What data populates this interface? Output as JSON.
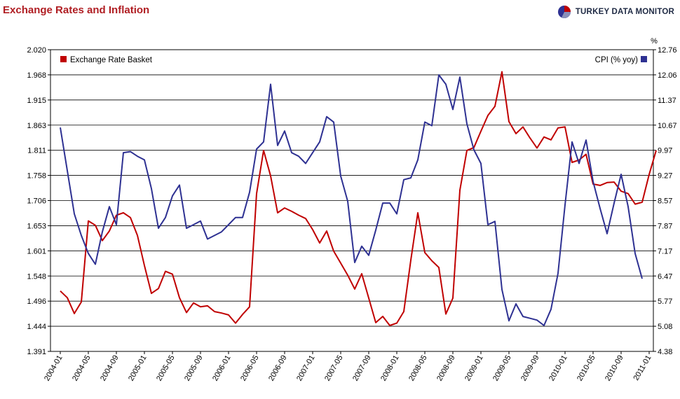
{
  "header": {
    "title": "Exchange Rates and Inflation",
    "brand": "TURKEY DATA MONITOR"
  },
  "colors": {
    "series1": "#c00000",
    "series2": "#2e3192",
    "title": "#b01e23"
  },
  "chart_data": {
    "type": "line",
    "title": "Exchange Rates and Inflation",
    "x_tick_labels": [
      "2004-01",
      "2004-05",
      "2004-09",
      "2005-01",
      "2005-05",
      "2005-09",
      "2006-01",
      "2006-05",
      "2006-09",
      "2007-01",
      "2007-05",
      "2007-09",
      "2008-01",
      "2008-05",
      "2008-09",
      "2009-01",
      "2009-05",
      "2009-09",
      "2010-01",
      "2010-05",
      "2010-09",
      "2011-01"
    ],
    "months_start": "2004-01",
    "left_axis": {
      "min": 1.391,
      "max": 2.02,
      "ticks": [
        "1.391",
        "1.444",
        "1.496",
        "1.548",
        "1.601",
        "1.653",
        "1.706",
        "1.758",
        "1.811",
        "1.863",
        "1.915",
        "1.968",
        "2.020"
      ]
    },
    "right_axis": {
      "unit": "%",
      "min": 4.38,
      "max": 12.76,
      "ticks": [
        "4.38",
        "5.08",
        "5.77",
        "6.47",
        "7.17",
        "7.87",
        "8.57",
        "9.27",
        "9.97",
        "10.67",
        "11.37",
        "12.06",
        "12.76"
      ]
    },
    "legend": {
      "left": "Exchange Rate Basket",
      "right": "CPI (% yoy)"
    },
    "series": [
      {
        "name": "Exchange Rate Basket",
        "axis": "left",
        "values": [
          1.517,
          1.503,
          1.47,
          1.494,
          1.663,
          1.654,
          1.622,
          1.642,
          1.675,
          1.68,
          1.67,
          1.633,
          1.57,
          1.512,
          1.522,
          1.558,
          1.552,
          1.503,
          1.472,
          1.492,
          1.484,
          1.486,
          1.474,
          1.471,
          1.467,
          1.45,
          1.468,
          1.484,
          1.72,
          1.81,
          1.757,
          1.68,
          1.69,
          1.683,
          1.675,
          1.668,
          1.645,
          1.617,
          1.642,
          1.6,
          1.575,
          1.55,
          1.521,
          1.553,
          1.502,
          1.451,
          1.464,
          1.445,
          1.45,
          1.474,
          1.581,
          1.68,
          1.597,
          1.58,
          1.566,
          1.469,
          1.502,
          1.727,
          1.81,
          1.816,
          1.85,
          1.883,
          1.902,
          1.974,
          1.87,
          1.845,
          1.859,
          1.836,
          1.815,
          1.838,
          1.832,
          1.857,
          1.859,
          1.785,
          1.79,
          1.802,
          1.74,
          1.737,
          1.743,
          1.744,
          1.725,
          1.72,
          1.698,
          1.702,
          1.76,
          1.81
        ]
      },
      {
        "name": "CPI (% yoy)",
        "axis": "right",
        "values": [
          10.6,
          9.4,
          8.2,
          7.6,
          7.1,
          6.8,
          7.7,
          8.4,
          7.9,
          9.9,
          9.93,
          9.8,
          9.7,
          8.9,
          7.8,
          8.1,
          8.7,
          9.0,
          7.8,
          7.9,
          8.0,
          7.5,
          7.6,
          7.7,
          7.9,
          8.1,
          8.1,
          8.8,
          10.0,
          10.2,
          11.8,
          10.1,
          10.5,
          9.9,
          9.8,
          9.6,
          9.9,
          10.2,
          10.9,
          10.75,
          9.25,
          8.55,
          6.85,
          7.3,
          7.05,
          7.75,
          8.5,
          8.5,
          8.2,
          9.15,
          9.2,
          9.7,
          10.75,
          10.65,
          12.06,
          11.8,
          11.1,
          12.0,
          10.7,
          9.98,
          9.6,
          7.9,
          7.99,
          6.1,
          5.23,
          5.7,
          5.35,
          5.3,
          5.25,
          5.1,
          5.55,
          6.55,
          8.45,
          10.2,
          9.6,
          10.25,
          9.1,
          8.35,
          7.65,
          8.5,
          9.3,
          8.4,
          7.1,
          6.4
        ]
      }
    ]
  }
}
